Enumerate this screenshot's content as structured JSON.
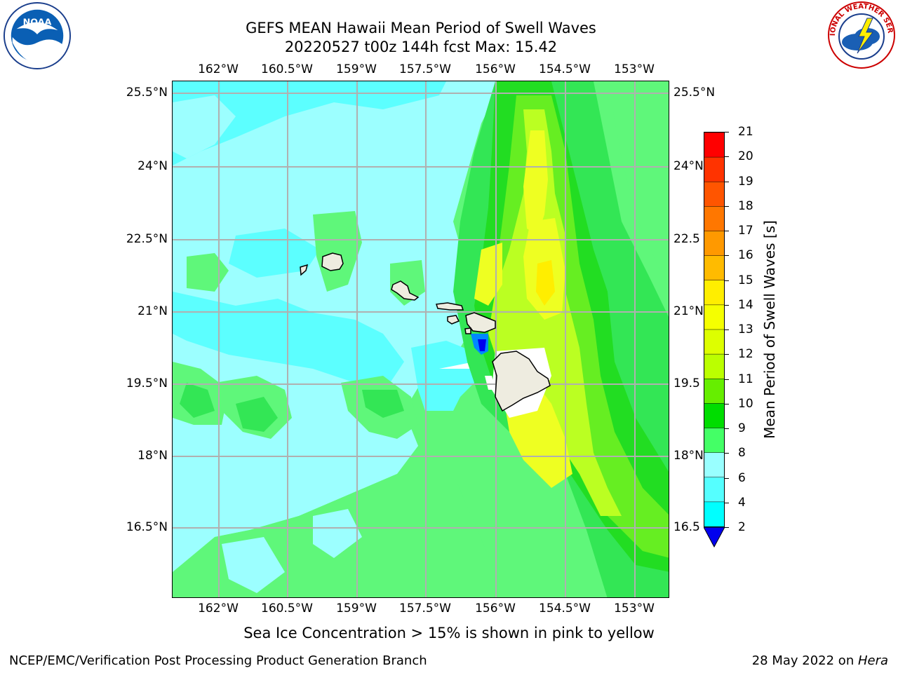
{
  "title_line1": "GEFS MEAN Hawaii Mean Period of Swell Waves",
  "title_line2": "20220527 t00z 144h fcst   Max: 15.42",
  "lon_ticks": [
    "162°W",
    "160.5°W",
    "159°W",
    "157.5°W",
    "156°W",
    "154.5°W",
    "153°W"
  ],
  "lat_ticks": [
    "25.5°N",
    "24°N",
    "22.5°N",
    "21°N",
    "19.5°N",
    "18°N",
    "16.5°N"
  ],
  "lat_ticks_right": [
    "25.5°N",
    "24°N",
    "22.5",
    "21°N",
    "19.5",
    "18°N",
    "16.5"
  ],
  "colorbar": {
    "label": "Mean Period of Swell Waves [s]",
    "ticks": [
      "21",
      "20",
      "19",
      "18",
      "17",
      "16",
      "15",
      "14",
      "13",
      "12",
      "11",
      "10",
      "9",
      "8",
      "6",
      "4",
      "2"
    ],
    "colors": [
      "#ff0000",
      "#ff3300",
      "#ff5500",
      "#ff7700",
      "#ff9900",
      "#ffbb00",
      "#ffee00",
      "#f5ff00",
      "#ddff00",
      "#bbff00",
      "#66ee00",
      "#00dd00",
      "#44ff66",
      "#99ffff",
      "#55ffff",
      "#00ffff",
      "#0088ff",
      "#0000ee"
    ]
  },
  "footnote": "Sea Ice Concentration > 15% is shown in pink to yellow",
  "credit_left": "NCEP/EMC/Verification Post Processing Product Generation Branch",
  "credit_right_prefix": "28 May 2022 on ",
  "credit_right_host": "Hera",
  "logos": {
    "noaa_text": "NOAA",
    "nws_text": "NATIONAL WEATHER SERVICE"
  }
}
